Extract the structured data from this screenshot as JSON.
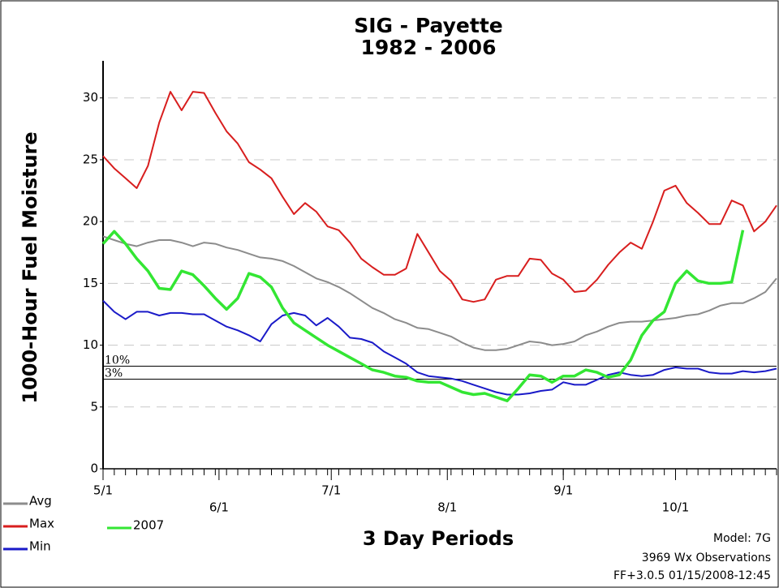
{
  "chart_data": {
    "type": "line",
    "title": "SIG - Payette",
    "subtitle": "1982 - 2006",
    "x_label": "3 Day Periods",
    "y_label": "1000-Hour Fuel Moisture",
    "x": [
      0,
      1,
      2,
      3,
      4,
      5,
      6,
      7,
      8,
      9,
      10,
      11,
      12,
      13,
      14,
      15,
      16,
      17,
      18,
      19,
      20,
      21,
      22,
      23,
      24,
      25,
      26,
      27,
      28,
      29,
      30,
      31,
      32,
      33,
      34,
      35,
      36,
      37,
      38,
      39,
      40,
      41,
      42,
      43,
      44,
      45,
      46,
      47,
      48,
      49,
      50,
      51,
      52,
      53,
      54,
      55,
      56,
      57,
      58,
      59,
      60
    ],
    "xlim": [
      0,
      60
    ],
    "xticks": [
      {
        "value": 0,
        "label": "5/1"
      },
      {
        "value": 10.33,
        "label": "6/1"
      },
      {
        "value": 20.33,
        "label": "7/1"
      },
      {
        "value": 30.67,
        "label": "8/1"
      },
      {
        "value": 41,
        "label": "9/1"
      },
      {
        "value": 51,
        "label": "10/1"
      }
    ],
    "ylim": [
      0,
      33
    ],
    "yticks": [
      0,
      5,
      10,
      15,
      20,
      25,
      30
    ],
    "grid": true,
    "legend": "bottom-left",
    "series": [
      {
        "name": "Avg",
        "color": "#8c8c8c",
        "values": [
          18.8,
          18.5,
          18.2,
          18,
          18.3,
          18.5,
          18.5,
          18.3,
          18,
          18.3,
          18.2,
          17.9,
          17.7,
          17.4,
          17.1,
          17,
          16.8,
          16.4,
          15.9,
          15.4,
          15.1,
          14.7,
          14.2,
          13.6,
          13,
          12.6,
          12.1,
          11.8,
          11.4,
          11.3,
          11,
          10.7,
          10.2,
          9.8,
          9.6,
          9.6,
          9.7,
          10,
          10.3,
          10.2,
          10,
          10.1,
          10.3,
          10.8,
          11.1,
          11.5,
          11.8,
          11.9,
          11.9,
          12,
          12.1,
          12.2,
          12.4,
          12.5,
          12.8,
          13.2,
          13.4,
          13.4,
          13.8,
          14.3,
          15.4
        ]
      },
      {
        "name": "Max",
        "color": "#d81e1e",
        "values": [
          25.3,
          24.3,
          23.5,
          22.7,
          24.5,
          28,
          30.5,
          29,
          30.5,
          30.4,
          28.8,
          27.3,
          26.3,
          24.8,
          24.2,
          23.5,
          22,
          20.6,
          21.5,
          20.8,
          19.6,
          19.3,
          18.3,
          17,
          16.3,
          15.7,
          15.7,
          16.2,
          19,
          17.5,
          16,
          15.2,
          13.7,
          13.5,
          13.7,
          15.3,
          15.6,
          15.6,
          17,
          16.9,
          15.8,
          15.3,
          14.3,
          14.4,
          15.3,
          16.5,
          17.5,
          18.3,
          17.8,
          20,
          22.5,
          22.9,
          21.5,
          20.7,
          19.8,
          19.8,
          21.7,
          21.3,
          19.2,
          20,
          21.3
        ]
      },
      {
        "name": "Min",
        "color": "#1a1ac8",
        "values": [
          13.6,
          12.7,
          12.1,
          12.7,
          12.7,
          12.4,
          12.6,
          12.6,
          12.5,
          12.5,
          12,
          11.5,
          11.2,
          10.8,
          10.3,
          11.7,
          12.4,
          12.6,
          12.4,
          11.6,
          12.2,
          11.5,
          10.6,
          10.5,
          10.2,
          9.5,
          9,
          8.5,
          7.8,
          7.5,
          7.4,
          7.3,
          7.1,
          6.8,
          6.5,
          6.2,
          6,
          6,
          6.1,
          6.3,
          6.4,
          7,
          6.8,
          6.8,
          7.2,
          7.6,
          7.8,
          7.6,
          7.5,
          7.6,
          8,
          8.2,
          8.1,
          8.1,
          7.8,
          7.7,
          7.7,
          7.9,
          7.8,
          7.9,
          8.1
        ]
      },
      {
        "name": "2007",
        "color": "#33e633",
        "values": [
          18.2,
          19.2,
          18.2,
          17,
          16,
          14.6,
          14.5,
          16,
          15.7,
          14.8,
          13.8,
          12.9,
          13.8,
          15.8,
          15.5,
          14.7,
          13,
          11.8,
          11.2,
          10.6,
          10,
          9.5,
          9,
          8.5,
          8,
          7.8,
          7.5,
          7.4,
          7.1,
          7,
          7,
          6.6,
          6.2,
          6,
          6.1,
          5.8,
          5.5,
          6.5,
          7.6,
          7.5,
          7,
          7.5,
          7.5,
          8,
          7.8,
          7.4,
          7.6,
          8.8,
          10.8,
          12,
          12.7,
          15,
          16,
          15.2,
          15,
          15,
          15.1,
          19.3,
          null,
          null,
          null
        ]
      }
    ],
    "reference_lines": [
      {
        "label": "10%",
        "value": 8.3
      },
      {
        "label": "3%",
        "value": 7.25
      }
    ],
    "notes": [
      "Model: 7G",
      "3969 Wx Observations",
      "FF+3.0.5 01/15/2008-12:45"
    ]
  }
}
